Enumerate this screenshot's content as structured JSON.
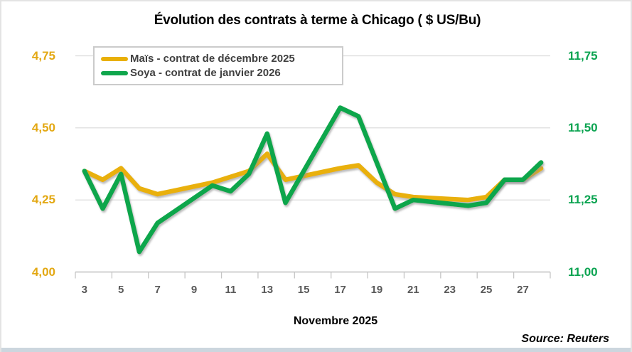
{
  "title": "Évolution des contrats à terme à Chicago ( $ US/Bu)",
  "source": "Source: Reuters",
  "colors": {
    "mais": "#e9b007",
    "soya": "#0fa64c",
    "grid": "#dadada",
    "axis_line": "#bfbfbf",
    "left_axis_label": "#e3a813",
    "right_axis_label": "#0aa350",
    "x_label": "#595959",
    "legend_text": "#404040"
  },
  "chart_data": {
    "type": "line",
    "title": "Évolution des contrats à terme à Chicago ( $ US/Bu)",
    "xlabel": "Novembre 2025",
    "grid": true,
    "legend_position": "top-left",
    "x_days": [
      3,
      4,
      5,
      6,
      7,
      10,
      11,
      12,
      13,
      14,
      17,
      18,
      19,
      20,
      21,
      24,
      25,
      26,
      27,
      28
    ],
    "series": [
      {
        "name": "Maïs - contrat de décembre 2025",
        "axis": "left",
        "color_key": "mais",
        "values": [
          4.35,
          4.32,
          4.36,
          4.29,
          4.27,
          4.31,
          4.33,
          4.35,
          4.41,
          4.32,
          4.36,
          4.37,
          4.31,
          4.27,
          4.26,
          4.25,
          4.26,
          4.32,
          4.32,
          4.36
        ]
      },
      {
        "name": "Soya - contrat de janvier 2026",
        "axis": "right",
        "color_key": "soya",
        "values": [
          11.35,
          11.22,
          11.34,
          11.07,
          11.17,
          11.3,
          11.28,
          11.34,
          11.48,
          11.24,
          11.57,
          11.54,
          11.38,
          11.22,
          11.25,
          11.23,
          11.24,
          11.32,
          11.32,
          11.38
        ]
      }
    ],
    "axes": {
      "left": {
        "min": 4.0,
        "max": 4.75,
        "tick_values": [
          4.75,
          4.5,
          4.25,
          4.0
        ],
        "tick_labels": [
          "4,75",
          "4,50",
          "4,25",
          "4,00"
        ]
      },
      "right": {
        "min": 11.0,
        "max": 11.75,
        "tick_values": [
          11.75,
          11.5,
          11.25,
          11.0
        ],
        "tick_labels": [
          "11,75",
          "11,50",
          "11,25",
          "11,00"
        ]
      },
      "x": {
        "tick_days": [
          3,
          5,
          7,
          9,
          11,
          13,
          15,
          17,
          19,
          21,
          23,
          25,
          27
        ],
        "tick_labels": [
          "3",
          "5",
          "7",
          "9",
          "11",
          "13",
          "15",
          "17",
          "19",
          "21",
          "23",
          "25",
          "27"
        ],
        "domain": [
          2.5,
          28.5
        ]
      }
    }
  }
}
